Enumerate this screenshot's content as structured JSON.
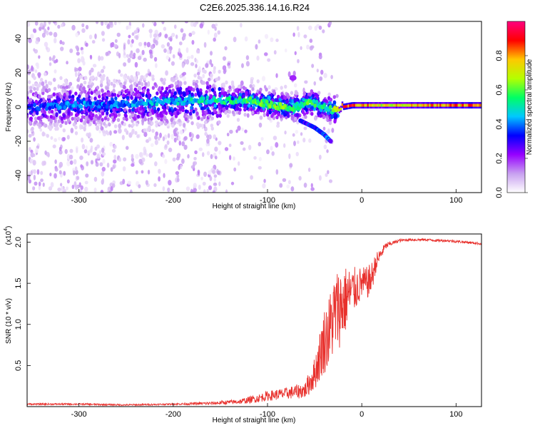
{
  "title": "C2E6.2025.336.14.16.R24",
  "chart_data": [
    {
      "type": "heatmap",
      "xlabel": "Height of straight line (km)",
      "ylabel": "Frequency (Hz)",
      "xlim": [
        -355,
        127
      ],
      "ylim": [
        -50,
        50
      ],
      "xticks": [
        -300,
        -200,
        -100,
        0,
        100
      ],
      "yticks": [
        -40,
        -20,
        0,
        20,
        40
      ],
      "colorbar": {
        "label": "Normalized spectral amplitude",
        "range": [
          0,
          1
        ],
        "ticks": [
          0.0,
          0.2,
          0.4,
          0.6,
          0.8
        ],
        "stops": [
          "#ffffff",
          "#c8a0f0",
          "#9600ff",
          "#0000ff",
          "#00c8ff",
          "#00ff64",
          "#b4ff00",
          "#ffc800",
          "#ff0000",
          "#ff0080"
        ]
      },
      "ridge": [
        {
          "x": -350,
          "y": 0,
          "a": 0.35
        },
        {
          "x": -300,
          "y": 1,
          "a": 0.4
        },
        {
          "x": -250,
          "y": 2,
          "a": 0.4
        },
        {
          "x": -200,
          "y": 3,
          "a": 0.45
        },
        {
          "x": -150,
          "y": 4,
          "a": 0.5
        },
        {
          "x": -120,
          "y": 4,
          "a": 0.55
        },
        {
          "x": -100,
          "y": 2,
          "a": 0.6
        },
        {
          "x": -85,
          "y": 0,
          "a": 0.6
        },
        {
          "x": -70,
          "y": 0,
          "a": 0.55
        },
        {
          "x": -55,
          "y": 3,
          "a": 0.55
        },
        {
          "x": -40,
          "y": 0,
          "a": 0.5
        },
        {
          "x": -30,
          "y": -2,
          "a": 0.6
        },
        {
          "x": -20,
          "y": 0,
          "a": 0.8
        },
        {
          "x": -10,
          "y": 1,
          "a": 0.85
        },
        {
          "x": 0,
          "y": 1,
          "a": 0.8
        },
        {
          "x": 20,
          "y": 1,
          "a": 0.7
        },
        {
          "x": 60,
          "y": 1,
          "a": 0.75
        },
        {
          "x": 100,
          "y": 1,
          "a": 0.8
        },
        {
          "x": 127,
          "y": 1,
          "a": 0.85
        }
      ],
      "branch": [
        {
          "x": -65,
          "y": -8
        },
        {
          "x": -50,
          "y": -12
        },
        {
          "x": -40,
          "y": -16
        },
        {
          "x": -33,
          "y": -20
        }
      ],
      "blob": {
        "x": -73,
        "y": 17
      },
      "noise_region": {
        "x_from": -355,
        "x_to": -30
      }
    },
    {
      "type": "line",
      "xlabel": "Height of straight line (km)",
      "ylabel": "SNR (10 * v/v)",
      "multiplier": "(x10",
      "multiplier_exp": "4",
      "multiplier_close": ")",
      "xlim": [
        -355,
        127
      ],
      "ylim": [
        0,
        2.1
      ],
      "xticks": [
        -300,
        -200,
        -100,
        0,
        100
      ],
      "yticks": [
        0.5,
        1.0,
        1.5,
        2.0
      ],
      "color": "#e8302c",
      "x": [
        -355,
        -300,
        -250,
        -200,
        -160,
        -130,
        -110,
        -100,
        -80,
        -60,
        -50,
        -45,
        -40,
        -35,
        -30,
        -25,
        -20,
        -15,
        -10,
        -5,
        0,
        5,
        10,
        15,
        20,
        25,
        30,
        35,
        40,
        50,
        60,
        70,
        80,
        90,
        100,
        110,
        120,
        127
      ],
      "values": [
        0.03,
        0.03,
        0.02,
        0.03,
        0.04,
        0.06,
        0.1,
        0.13,
        0.16,
        0.2,
        0.4,
        0.6,
        0.8,
        0.9,
        1.1,
        1.2,
        1.25,
        1.35,
        1.4,
        1.45,
        1.5,
        1.5,
        1.55,
        1.75,
        1.85,
        1.95,
        1.98,
        2.0,
        2.02,
        2.03,
        2.03,
        2.03,
        2.02,
        2.02,
        2.01,
        2.0,
        1.99,
        1.98
      ],
      "spread": [
        0.01,
        0.01,
        0.01,
        0.01,
        0.02,
        0.03,
        0.05,
        0.06,
        0.07,
        0.1,
        0.2,
        0.3,
        0.4,
        0.45,
        0.5,
        0.5,
        0.5,
        0.35,
        0.3,
        0.25,
        0.2,
        0.2,
        0.2,
        0.12,
        0.08,
        0.04,
        0.03,
        0.02,
        0.02,
        0.015,
        0.015,
        0.015,
        0.015,
        0.015,
        0.015,
        0.015,
        0.015,
        0.015
      ]
    }
  ]
}
